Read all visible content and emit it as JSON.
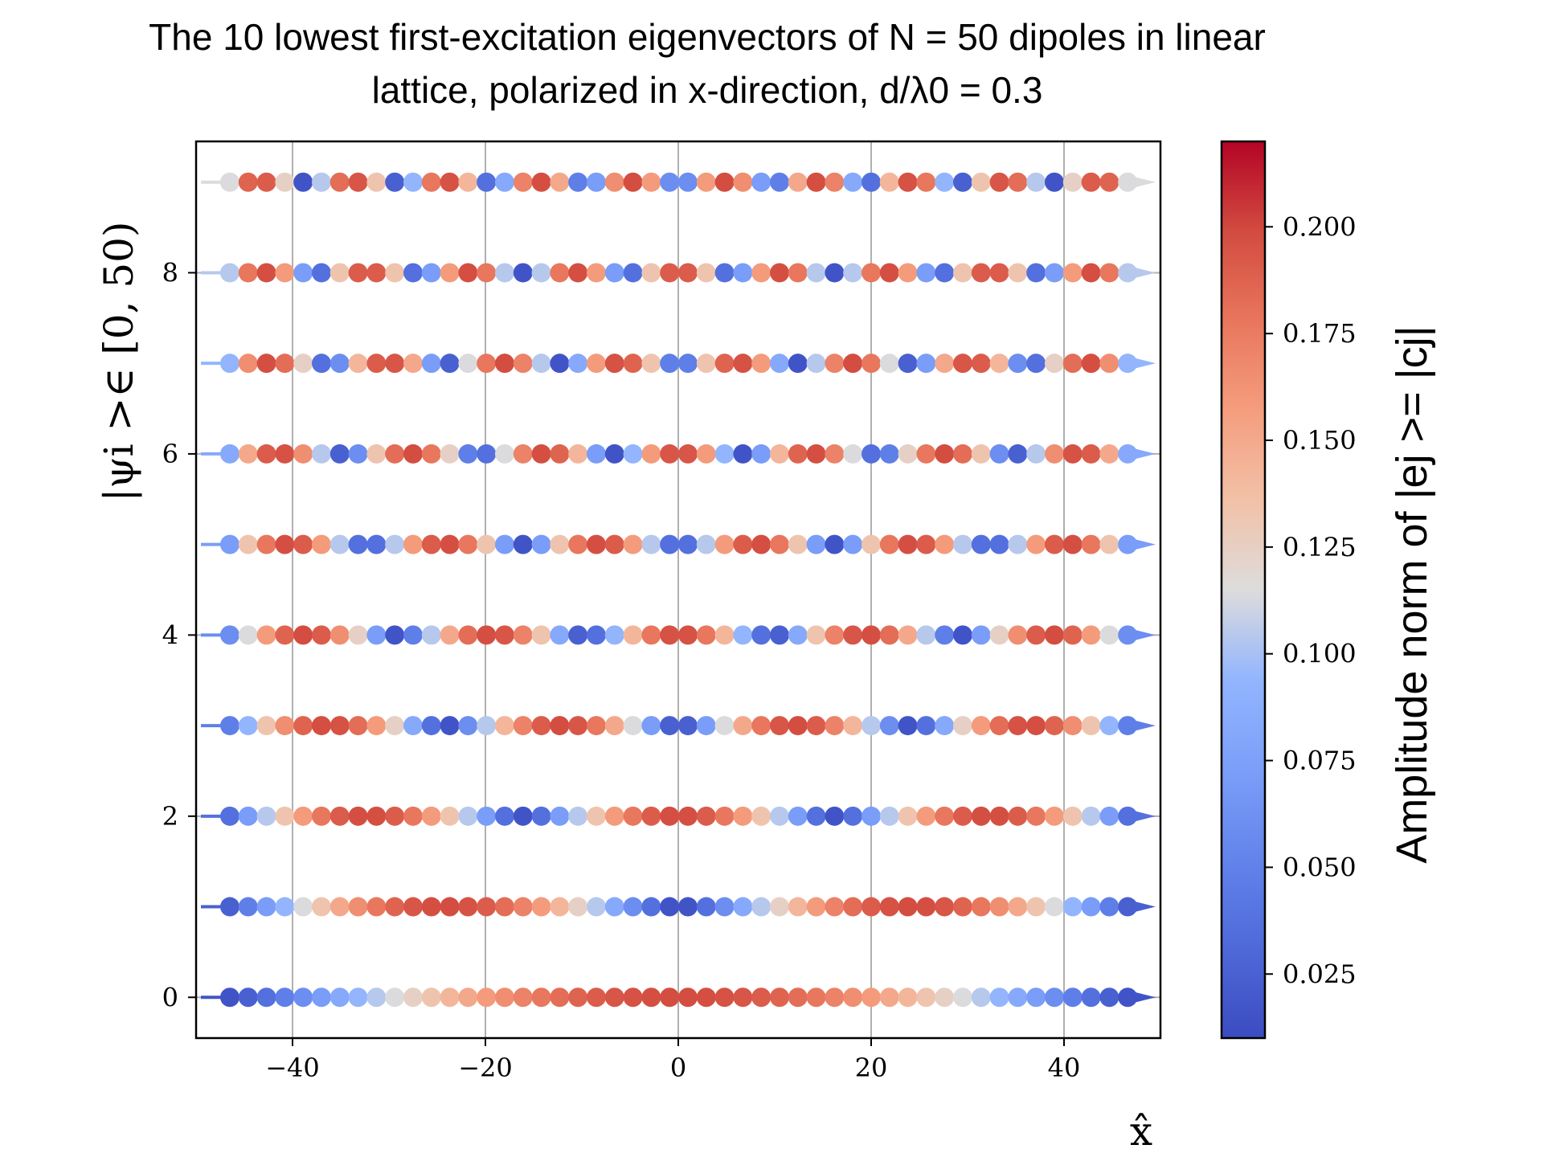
{
  "chart_data": {
    "type": "scatter",
    "title_line1": "The 10 lowest first-excitation eigenvectors of N = 50 dipoles in linear",
    "title_line2": "lattice, polarized in x-direction, d/λ0 = 0.3",
    "xlabel": "x̂",
    "ylabel": "|ψi >∈ [0, 50)",
    "colorbar_label": "Amplitude norm of |ej >= |cj|",
    "colormap": "coolwarm",
    "color_low": "#3b4cc0",
    "color_mid": "#dddddd",
    "color_high": "#b40426",
    "xlim": [
      -50,
      50
    ],
    "ylim": [
      -0.45,
      9.45
    ],
    "x_ticks": [
      -40,
      -20,
      0,
      20,
      40
    ],
    "x_tick_labels": [
      "−40",
      "−20",
      "0",
      "20",
      "40"
    ],
    "y_ticks": [
      0,
      2,
      4,
      6,
      8
    ],
    "y_tick_labels": [
      "0",
      "2",
      "4",
      "6",
      "8"
    ],
    "colorbar_range": [
      0.01,
      0.22
    ],
    "colorbar_ticks": [
      0.025,
      0.05,
      0.075,
      0.1,
      0.125,
      0.15,
      0.175,
      0.2
    ],
    "colorbar_tick_labels": [
      "0.025",
      "0.050",
      "0.075",
      "0.100",
      "0.125",
      "0.150",
      "0.175",
      "0.200"
    ],
    "grid": true,
    "lattice_x": {
      "start": -46.5,
      "step": 1.9,
      "count": 50
    },
    "arrow_x_range": [
      -49.5,
      49.5
    ],
    "series_rows": [
      0,
      1,
      2,
      3,
      4,
      5,
      6,
      7,
      8,
      9
    ],
    "amplitude_model": "sinusoidal standing-wave mode: |c_j| ∝ |sin(n·π·j/(N+1))| for row n"
  }
}
